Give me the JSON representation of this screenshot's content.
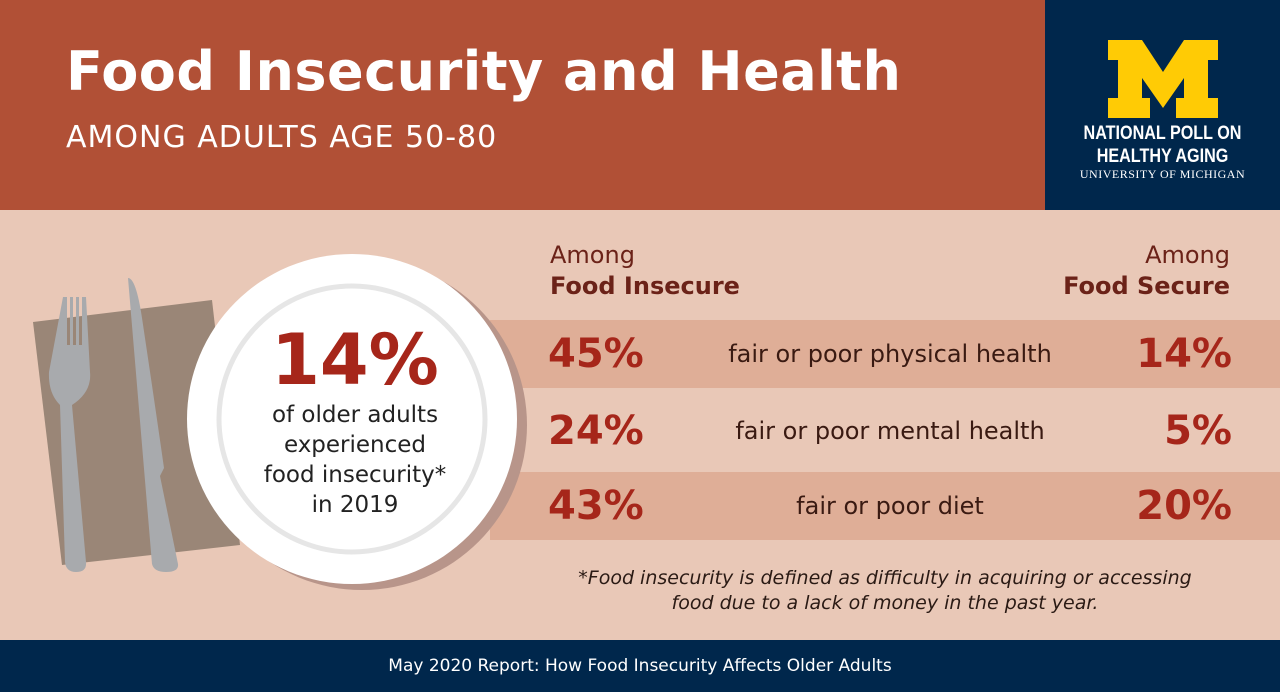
{
  "header": {
    "title": "Food Insecurity and Health",
    "subtitle": "AMONG ADULTS AGE 50-80"
  },
  "logo": {
    "letter": "M",
    "line1": "NATIONAL POLL ON",
    "line2": "HEALTHY AGING",
    "line3": "UNIVERSITY OF MICHIGAN",
    "colors": {
      "navy": "#00274c",
      "maize": "#ffcb05"
    }
  },
  "plate": {
    "percent": "14%",
    "line1": "of older adults",
    "line2": "experienced",
    "line3": "food insecurity*",
    "line4": "in 2019"
  },
  "columns": {
    "left_top": "Among",
    "left_bottom": "Food Insecure",
    "right_top": "Among",
    "right_bottom": "Food Secure"
  },
  "rows": [
    {
      "insecure": "45%",
      "label": "fair or poor physical health",
      "secure": "14%"
    },
    {
      "insecure": "24%",
      "label": "fair or poor mental health",
      "secure": "5%"
    },
    {
      "insecure": "43%",
      "label": "fair or poor diet",
      "secure": "20%"
    }
  ],
  "footnote": {
    "line1": "*Food insecurity is defined as difficulty in acquiring or accessing",
    "line2": "food due to a lack of money in the past year."
  },
  "footer": {
    "text": "May 2020 Report: How Food Insecurity Affects Older Adults"
  },
  "colors": {
    "header": "#b15036",
    "accent": "#a6261a",
    "band": "#dfae97",
    "background": "#e9c8b7"
  }
}
